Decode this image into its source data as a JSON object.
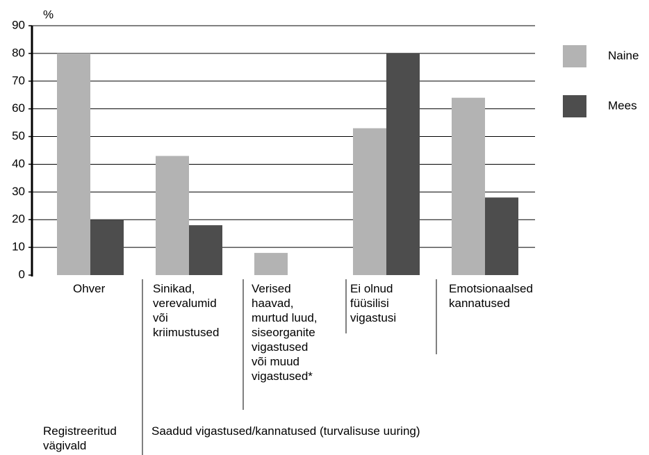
{
  "chart_data": {
    "type": "bar",
    "y_label": "%",
    "categories": [
      "Ohver",
      "Sinikad,\nverevalumid\nvõi\nkriimustused",
      "Verised\nhaavad,\nmurtud luud,\nsiseorganite\nvigastused\nvõi muud\nvigastused*",
      "Ei olnud\nfüüsilisi\nvigastusi",
      "Emotsionaalsed\nkannatused"
    ],
    "series": [
      {
        "name": "Naine",
        "color": "#b3b3b3",
        "values": [
          80,
          43,
          8,
          53,
          64
        ]
      },
      {
        "name": "Mees",
        "color": "#4d4d4d",
        "values": [
          20,
          18,
          0,
          80,
          28
        ]
      }
    ],
    "group_labels": [
      "Registreeritud\nvägivald",
      "Saadud vigastused/kannatused (turvalisuse uuring)"
    ],
    "ylim": [
      0,
      90
    ],
    "yticks": [
      0,
      10,
      20,
      30,
      40,
      50,
      60,
      70,
      80,
      90
    ],
    "grid": true,
    "legend": "right"
  }
}
